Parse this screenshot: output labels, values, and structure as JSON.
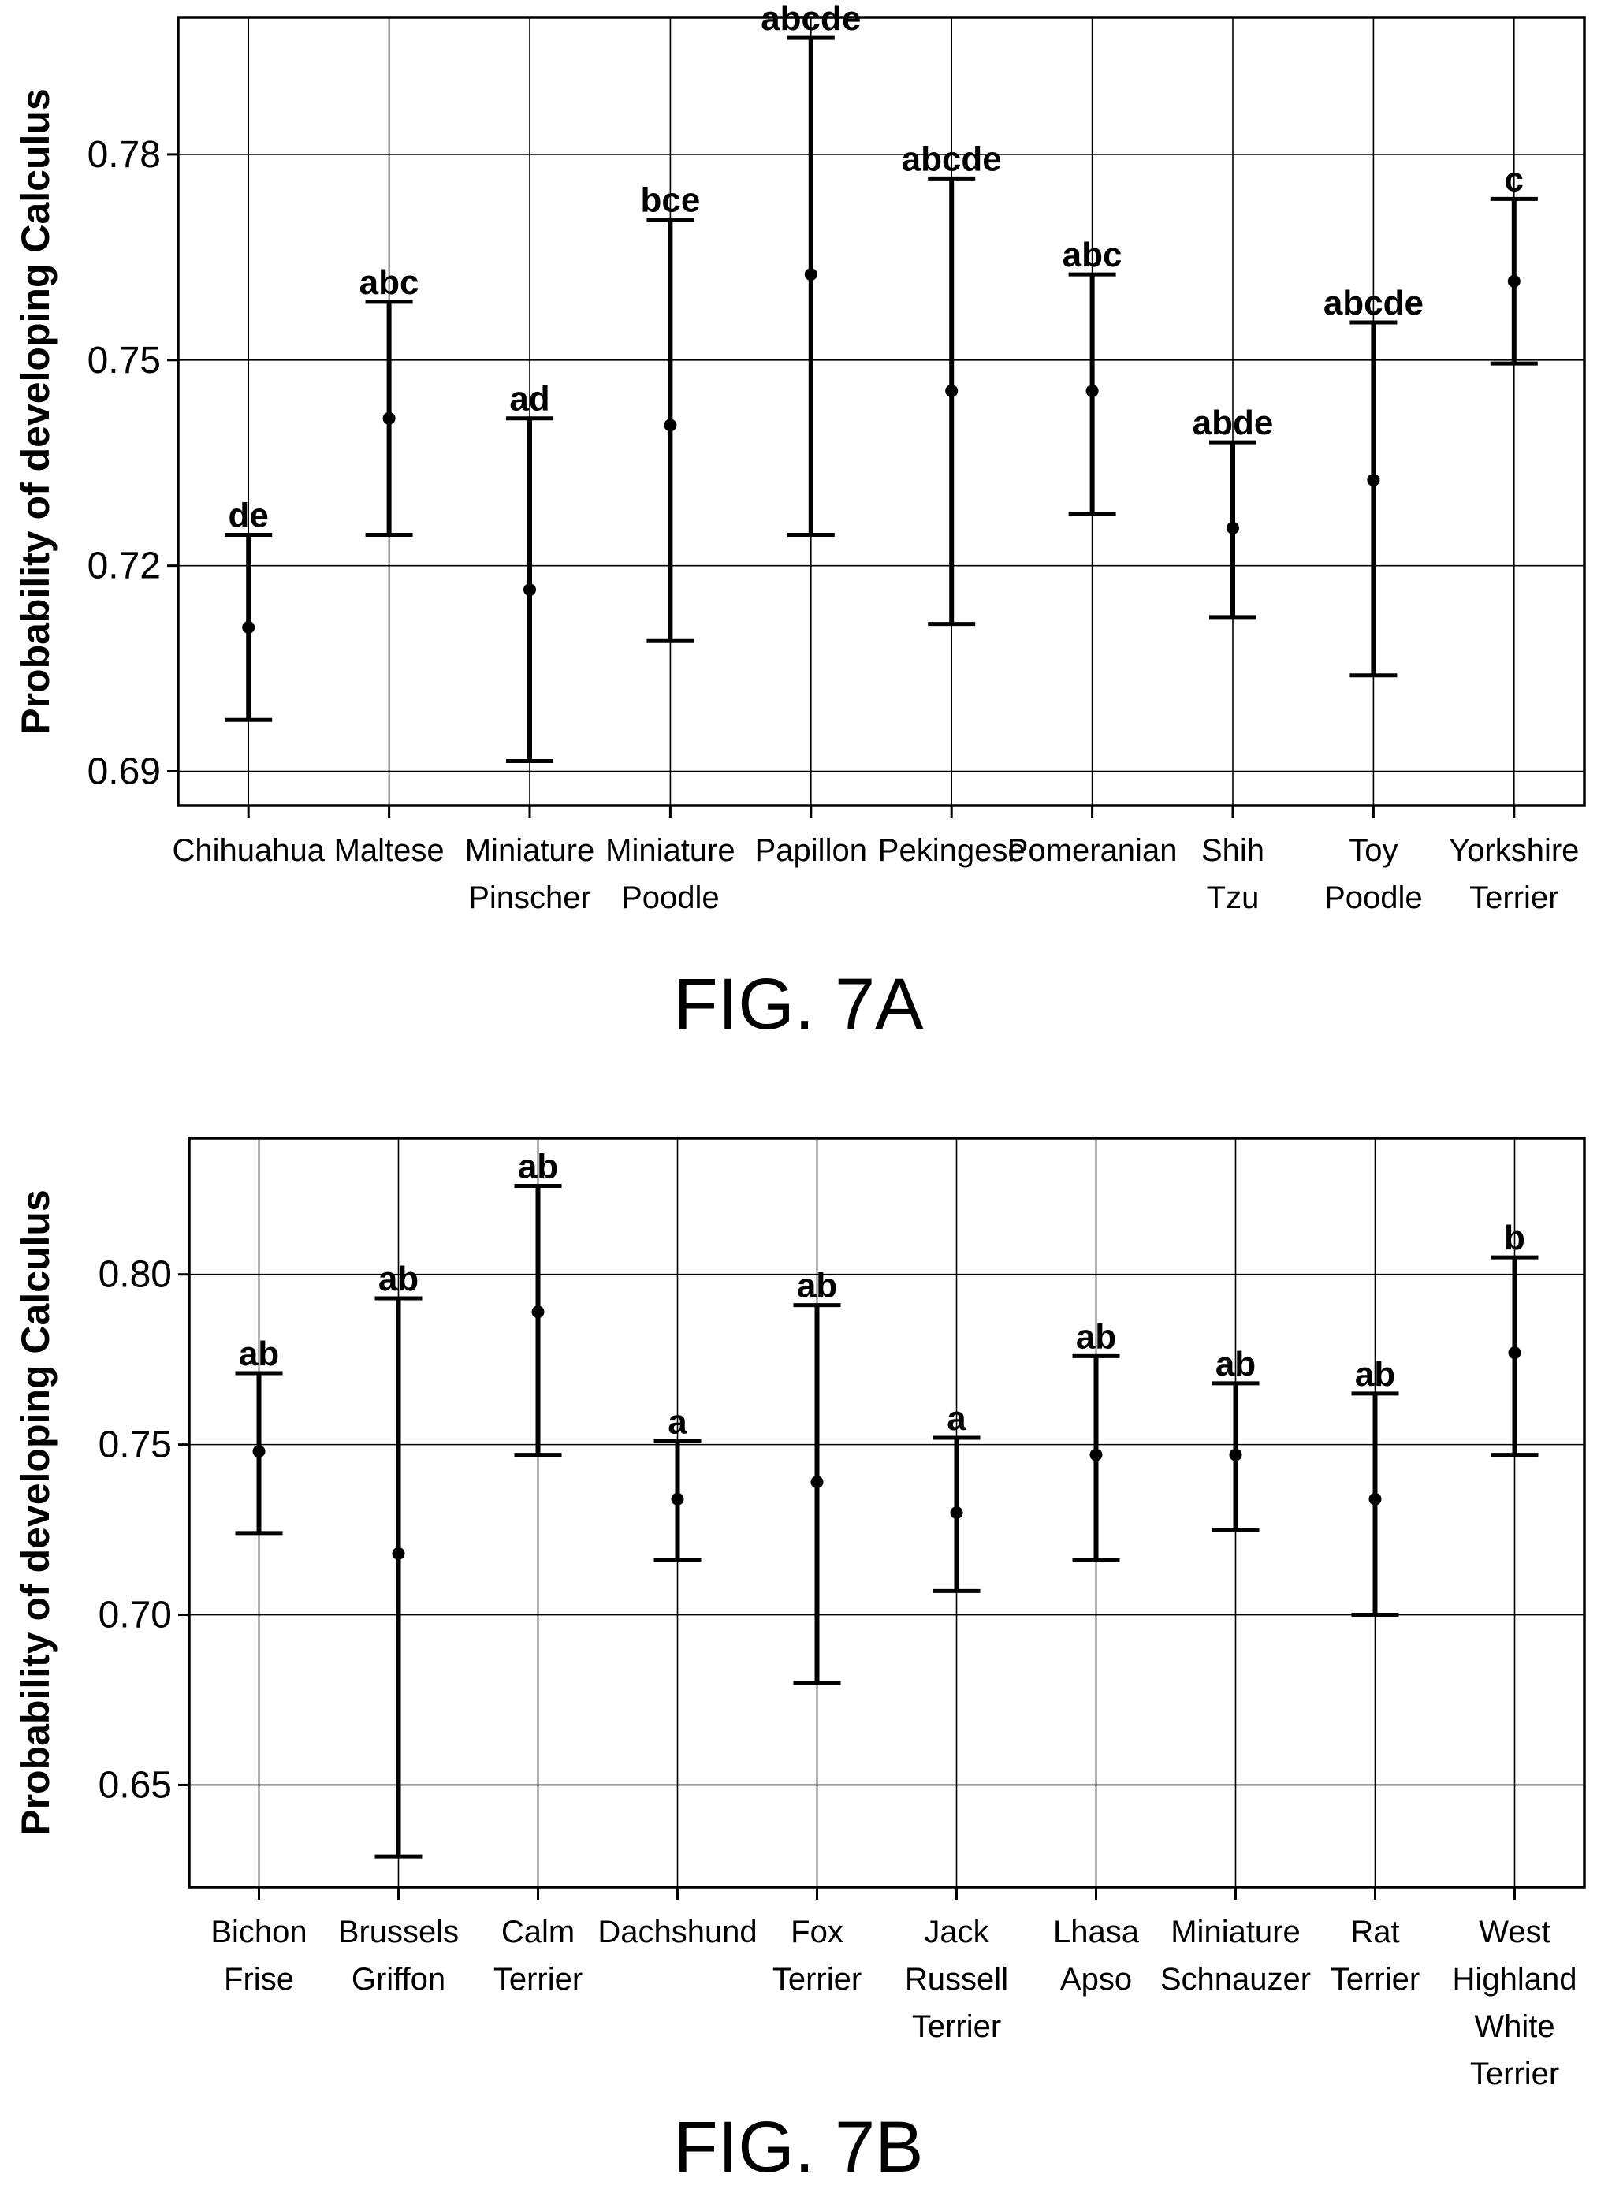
{
  "chart_data": [
    {
      "type": "errorbar",
      "figure_label": "FIG. 7A",
      "ylabel": "Probability of developing Calculus",
      "xlabel": "",
      "ylim": [
        0.685,
        0.8
      ],
      "yticks": [
        0.69,
        0.72,
        0.75,
        0.78
      ],
      "ytick_labels": [
        "0.69",
        "0.72",
        "0.75",
        "0.78"
      ],
      "grid": "horizontal-and-vertical",
      "categories": [
        [
          "Chihuahua"
        ],
        [
          "Maltese"
        ],
        [
          "Miniature",
          "Pinscher"
        ],
        [
          "Miniature",
          "Poodle"
        ],
        [
          "Papillon"
        ],
        [
          "Pekingese"
        ],
        [
          "Pomeranian"
        ],
        [
          "Shih",
          "Tzu"
        ],
        [
          "Toy",
          "Poodle"
        ],
        [
          "Yorkshire",
          "Terrier"
        ]
      ],
      "estimate": [
        0.711,
        0.7415,
        0.7165,
        0.7405,
        0.7625,
        0.7455,
        0.7455,
        0.7255,
        0.7325,
        0.7615
      ],
      "lower": [
        0.6975,
        0.7245,
        0.6915,
        0.709,
        0.7245,
        0.7115,
        0.7275,
        0.7125,
        0.704,
        0.7495
      ],
      "upper": [
        0.7245,
        0.7585,
        0.7415,
        0.7705,
        0.797,
        0.7765,
        0.7625,
        0.738,
        0.7555,
        0.7735
      ],
      "letters": [
        "de",
        "abc",
        "ad",
        "bce",
        "abcde",
        "abcde",
        "abc",
        "abde",
        "abcde",
        "c"
      ]
    },
    {
      "type": "errorbar",
      "figure_label": "FIG. 7B",
      "ylabel": "Probability of developing Calculus",
      "xlabel": "",
      "ylim": [
        0.62,
        0.84
      ],
      "yticks": [
        0.65,
        0.7,
        0.75,
        0.8
      ],
      "ytick_labels": [
        "0.65",
        "0.70",
        "0.75",
        "0.80"
      ],
      "grid": "horizontal-and-vertical",
      "categories": [
        [
          "Bichon",
          "Frise"
        ],
        [
          "Brussels",
          "Griffon"
        ],
        [
          "Calm",
          "Terrier"
        ],
        [
          "Dachshund"
        ],
        [
          "Fox",
          "Terrier"
        ],
        [
          "Jack",
          "Russell",
          "Terrier"
        ],
        [
          "Lhasa",
          "Apso"
        ],
        [
          "Miniature",
          "Schnauzer"
        ],
        [
          "Rat",
          "Terrier"
        ],
        [
          "West",
          "Highland",
          "White",
          "Terrier"
        ]
      ],
      "estimate": [
        0.748,
        0.718,
        0.789,
        0.734,
        0.739,
        0.73,
        0.747,
        0.747,
        0.734,
        0.777
      ],
      "lower": [
        0.724,
        0.629,
        0.747,
        0.716,
        0.68,
        0.707,
        0.716,
        0.725,
        0.7,
        0.747
      ],
      "upper": [
        0.771,
        0.793,
        0.826,
        0.751,
        0.791,
        0.752,
        0.776,
        0.768,
        0.765,
        0.805
      ],
      "letters": [
        "ab",
        "ab",
        "ab",
        "a",
        "ab",
        "a",
        "ab",
        "ab",
        "ab",
        "b"
      ]
    }
  ]
}
